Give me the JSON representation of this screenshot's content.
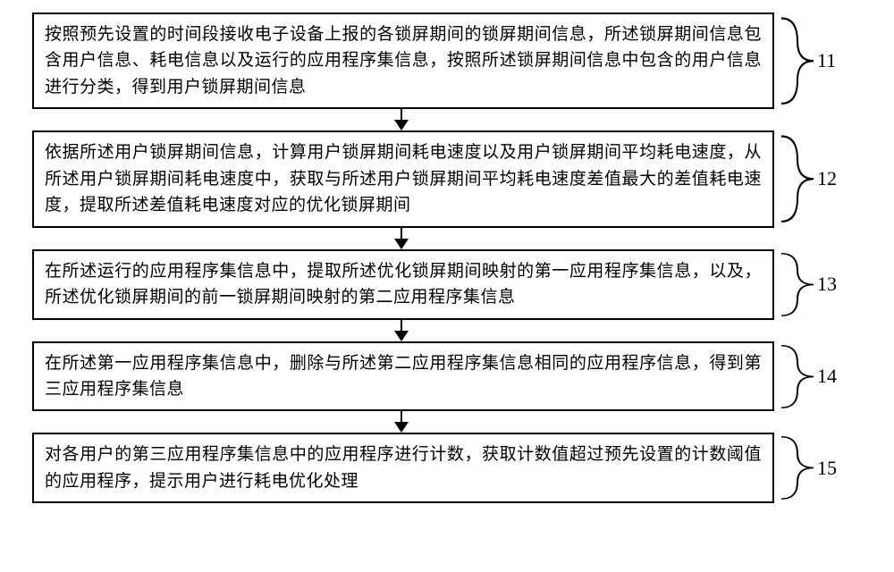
{
  "flow": {
    "background_color": "#ffffff",
    "border_color": "#000000",
    "font_family": "SimSun",
    "font_size_box": 19,
    "font_size_num": 22,
    "steps": [
      {
        "num": "11",
        "text": "按照预先设置的时间段接收电子设备上报的各锁屏期间的锁屏期间信息，所述锁屏期间信息包含用户信息、耗电信息以及运行的应用程序集信息，按照所述锁屏期间信息中包含的用户信息进行分类，得到用户锁屏期间信息"
      },
      {
        "num": "12",
        "text": "依据所述用户锁屏期间信息，计算用户锁屏期间耗电速度以及用户锁屏期间平均耗电速度，从所述用户锁屏期间耗电速度中，获取与所述用户锁屏期间平均耗电速度差值最大的差值耗电速度，提取所述差值耗电速度对应的优化锁屏期间"
      },
      {
        "num": "13",
        "text": "在所述运行的应用程序集信息中，提取所述优化锁屏期间映射的第一应用程序集信息，以及，所述优化锁屏期间的前一锁屏期间映射的第二应用程序集信息"
      },
      {
        "num": "14",
        "text": "在所述第一应用程序集信息中，删除与所述第二应用程序集信息相同的应用程序信息，得到第三应用程序集信息"
      },
      {
        "num": "15",
        "text": "对各用户的第三应用程序集信息中的应用程序进行计数，获取计数值超过预先设置的计数阈值的应用程序，提示用户进行耗电优化处理"
      }
    ],
    "arrow": {
      "line_width": 2,
      "head_width": 16,
      "head_height": 12,
      "color": "#000000"
    }
  }
}
